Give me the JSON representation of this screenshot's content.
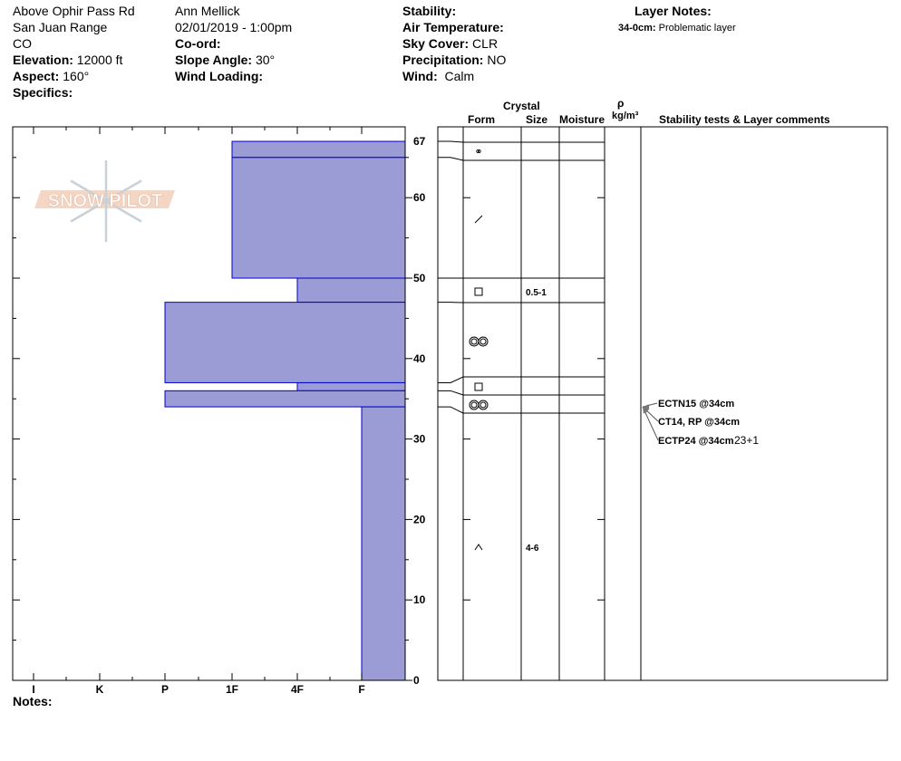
{
  "header": {
    "location": "Above Ophir Pass Rd",
    "range": "San Juan Range",
    "state": "CO",
    "elevation_label": "Elevation:",
    "elevation": "12000 ft",
    "aspect_label": "Aspect:",
    "aspect": "160°",
    "specifics_label": "Specifics:",
    "observer": "Ann Mellick",
    "datetime": "02/01/2019 - 1:00pm",
    "coord_label": "Co-ord:",
    "slope_label": "Slope Angle:",
    "slope": "30°",
    "wind_loading_label": "Wind Loading:",
    "stability_label": "Stability:",
    "air_temp_label": "Air Temperature:",
    "sky_label": "Sky Cover:",
    "sky": "CLR",
    "precip_label": "Precipitation:",
    "precip": "NO",
    "wind_label": "Wind:",
    "wind": "Calm",
    "layer_notes_label": "Layer Notes:",
    "layer_note_depth": "34-0cm:",
    "layer_note_text": "Problematic layer"
  },
  "columns": {
    "crystal": "Crystal",
    "form": "Form",
    "size": "Size",
    "moisture": "Moisture",
    "rho": "ρ",
    "density": "kg/m³",
    "comments": "Stability tests & Layer comments"
  },
  "logo_text": "SNOW PILOT",
  "hardness_labels": [
    "I",
    "K",
    "P",
    "1F",
    "4F",
    "F"
  ],
  "depth_ticks": [
    "67",
    "60",
    "50",
    "40",
    "30",
    "20",
    "10",
    "0"
  ],
  "notes_label": "Notes:",
  "colors": {
    "layer_fill": "#9b9bd6",
    "layer_edge": "#0000cc"
  },
  "layers": [
    {
      "top": 67,
      "bottom": 65,
      "hardness": "1F",
      "form": "rounded-polycrystals",
      "size": ""
    },
    {
      "top": 65,
      "bottom": 50,
      "hardness": "1F",
      "form": "decomposing-fragments",
      "size": ""
    },
    {
      "top": 50,
      "bottom": 47,
      "hardness": "4F",
      "form": "faceted",
      "size": "0.5-1"
    },
    {
      "top": 47,
      "bottom": 37,
      "hardness": "P",
      "form": "melt-forms",
      "size": ""
    },
    {
      "top": 37,
      "bottom": 36,
      "hardness": "4F",
      "form": "faceted",
      "size": ""
    },
    {
      "top": 36,
      "bottom": 34,
      "hardness": "P",
      "form": "melt-forms",
      "size": ""
    },
    {
      "top": 34,
      "bottom": 0,
      "hardness": "F",
      "form": "depth-hoar",
      "size": "4-6"
    }
  ],
  "stability_tests": [
    {
      "text": "ECTN15 @34cm",
      "extra": ""
    },
    {
      "text": "CT14, RP @34cm",
      "extra": ""
    },
    {
      "text": "ECTP24 @34cm",
      "extra": "23+1"
    }
  ]
}
